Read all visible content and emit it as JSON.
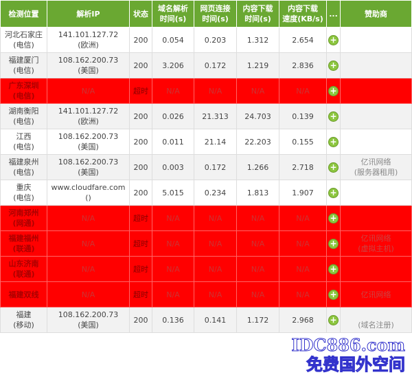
{
  "headers": [
    "检测位置",
    "解析IP",
    "状态",
    "域名解析\n时间(s)",
    "网页连接\n时间(s)",
    "内容下载\n时间(s)",
    "内容下载\n速度(KB/s)",
    "...",
    "赞助商"
  ],
  "rows": [
    {
      "loc": "河北石家庄",
      "isp": "(电信)",
      "ip": "141.101.127.72",
      "region": "(欧洲)",
      "status": "200",
      "dns": "0.054",
      "conn": "0.203",
      "dl": "1.312",
      "speed": "2.654",
      "bad": false
    },
    {
      "loc": "福建厦门",
      "isp": "(电信)",
      "ip": "108.162.200.73",
      "region": "(美国)",
      "status": "200",
      "dns": "3.206",
      "conn": "0.172",
      "dl": "1.219",
      "speed": "2.836",
      "bad": false
    },
    {
      "loc": "广东深圳",
      "isp": "(电信)",
      "ip": "N/A",
      "region": "",
      "status": "超时",
      "dns": "N/A",
      "conn": "N/A",
      "dl": "N/A",
      "speed": "N/A",
      "bad": true
    },
    {
      "loc": "湖南衡阳",
      "isp": "(电信)",
      "ip": "141.101.127.72",
      "region": "(欧洲)",
      "status": "200",
      "dns": "0.026",
      "conn": "21.313",
      "dl": "24.703",
      "speed": "0.139",
      "bad": false
    },
    {
      "loc": "江西",
      "isp": "(电信)",
      "ip": "108.162.200.73",
      "region": "(美国)",
      "status": "200",
      "dns": "0.011",
      "conn": "21.14",
      "dl": "22.203",
      "speed": "0.155",
      "bad": false
    },
    {
      "loc": "福建泉州",
      "isp": "(电信)",
      "ip": "108.162.200.73",
      "region": "(美国)",
      "status": "200",
      "dns": "0.003",
      "conn": "0.172",
      "dl": "1.266",
      "speed": "2.718",
      "bad": false,
      "sponsor": "亿讯网络",
      "sponsor2": "(服务器租用)"
    },
    {
      "loc": "重庆",
      "isp": "(电信)",
      "ip": "www.cloudfare.com",
      "region": "()",
      "status": "200",
      "dns": "5.015",
      "conn": "0.234",
      "dl": "1.813",
      "speed": "1.907",
      "bad": false
    },
    {
      "loc": "河南郑州",
      "isp": "(网通)",
      "ip": "N/A",
      "region": "",
      "status": "超时",
      "dns": "N/A",
      "conn": "N/A",
      "dl": "N/A",
      "speed": "N/A",
      "bad": true
    },
    {
      "loc": "福建福州",
      "isp": "(联通)",
      "ip": "N/A",
      "region": "",
      "status": "超时",
      "dns": "N/A",
      "conn": "N/A",
      "dl": "N/A",
      "speed": "N/A",
      "bad": true,
      "sponsor": "亿讯网络",
      "sponsor2": "(虚拟主机)"
    },
    {
      "loc": "山东济南",
      "isp": "(联通)",
      "ip": "N/A",
      "region": "",
      "status": "超时",
      "dns": "N/A",
      "conn": "N/A",
      "dl": "N/A",
      "speed": "N/A",
      "bad": true
    },
    {
      "loc": "福建双线",
      "isp": "",
      "ip": "N/A",
      "region": "",
      "status": "超时",
      "dns": "N/A",
      "conn": "N/A",
      "dl": "N/A",
      "speed": "N/A",
      "bad": true,
      "sponsor": "亿讯网络",
      "sponsor2": ""
    },
    {
      "loc": "福建",
      "isp": "(移动)",
      "ip": "108.162.200.73",
      "region": "(美国)",
      "status": "200",
      "dns": "0.136",
      "conn": "0.141",
      "dl": "1.172",
      "speed": "2.968",
      "bad": false,
      "sponsor": "",
      "sponsor2": "(域名注册)"
    }
  ],
  "watermark": {
    "line1": "IDC886.com",
    "line2": "免费国外空间"
  },
  "colors": {
    "header": "#6aa832",
    "fail": "#ff0000"
  }
}
